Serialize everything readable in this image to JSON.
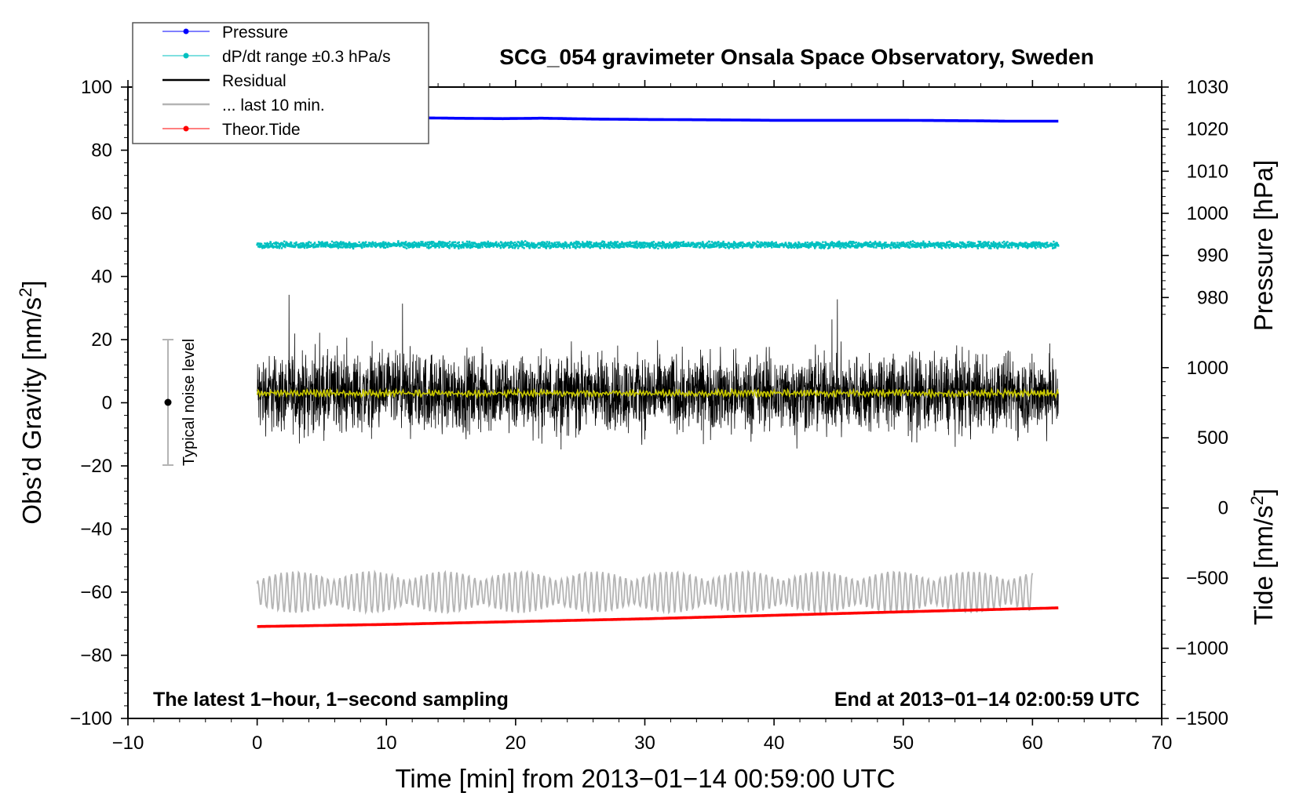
{
  "chart_data": {
    "type": "line",
    "title": "SCG_054 gravimeter Onsala Space Observatory, Sweden",
    "xlabel": "Time [min] from 2013−01−14 00:59:00 UTC",
    "ylabel_left": "Obs’d Gravity [nm/s",
    "ylabel_left_sup": "2",
    "ylabel_left_close": "]",
    "ylabel_right_pressure": "Pressure [hPa]",
    "ylabel_right_tide": "Tide [nm/s",
    "ylabel_right_tide_sup": "2",
    "ylabel_right_tide_close": "]",
    "xlim": [
      -10,
      70
    ],
    "ylim": [
      -100,
      100
    ],
    "pressure_axis": {
      "range": [
        880,
        1030
      ],
      "ticks": [
        980,
        990,
        1000,
        1010,
        1020,
        1030
      ]
    },
    "tide_axis": {
      "range": [
        -1500,
        3000
      ],
      "ticks": [
        -1500,
        -1000,
        -500,
        0,
        500,
        1000
      ]
    },
    "x_ticks": [
      -10,
      0,
      10,
      20,
      30,
      40,
      50,
      60,
      70
    ],
    "x_tick_labels": [
      "−10",
      "0",
      "10",
      "20",
      "30",
      "40",
      "50",
      "60",
      "70"
    ],
    "y_ticks": [
      -100,
      -80,
      -60,
      -40,
      -20,
      0,
      20,
      40,
      60,
      80,
      100
    ],
    "y_tick_labels": [
      "−100",
      "−80",
      "−60",
      "−40",
      "−20",
      "0",
      "20",
      "40",
      "60",
      "80",
      "100"
    ],
    "pressure_tick_labels": [
      "980",
      "990",
      "1000",
      "1010",
      "1020",
      "1030"
    ],
    "tide_tick_labels": [
      "−1500",
      "−1000",
      "−500",
      "0",
      "500",
      "1000"
    ],
    "series": [
      {
        "name": "Pressure",
        "axis": "pressure",
        "color": "#0000ff",
        "x": [
          0,
          5,
          10,
          15,
          19,
          22,
          26,
          30,
          36,
          40,
          45,
          50,
          55,
          58,
          62
        ],
        "values": [
          1022.9,
          1022.8,
          1022.8,
          1022.6,
          1022.5,
          1022.6,
          1022.4,
          1022.3,
          1022.2,
          1022.1,
          1022.1,
          1022.1,
          1022.0,
          1021.9,
          1021.9
        ]
      },
      {
        "name": "dP/dt range ±0.3 hPa/s",
        "axis": "gravity",
        "color": "#00c0c0",
        "center": 50,
        "spread": 1.2,
        "x_range": [
          0,
          62
        ]
      },
      {
        "name": "Residual",
        "axis": "gravity",
        "color": "#000000",
        "center": 3,
        "amplitude": 7,
        "x_range": [
          0,
          62
        ]
      },
      {
        "name": "... last 10 min.",
        "axis": "gravity",
        "color": "#b4b4b4",
        "center": -60,
        "amplitude": 6,
        "x_range": [
          0,
          60
        ]
      },
      {
        "name": "Theor.Tide",
        "axis": "tide",
        "color": "#ff0000",
        "x": [
          0,
          10,
          20,
          30,
          40,
          50,
          62
        ],
        "values": [
          -845,
          -830,
          -810,
          -790,
          -765,
          -740,
          -712
        ]
      },
      {
        "name": "Residual smoothed",
        "axis": "gravity",
        "color": "#c8c800",
        "center": 3,
        "amplitude": 1
      }
    ],
    "legend": [
      {
        "label": "Pressure",
        "color": "#0000ff",
        "marker": true
      },
      {
        "label": "dP/dt range ±0.3 hPa/s",
        "color": "#00c0c0",
        "marker": true
      },
      {
        "label": "Residual",
        "color": "#000000",
        "marker": false
      },
      {
        "label": "... last 10 min.",
        "color": "#b4b4b4",
        "marker": false
      },
      {
        "label": "Theor.Tide",
        "color": "#ff0000",
        "marker": true
      }
    ],
    "legend_position": "top-left",
    "noise_level": {
      "label": "Typical noise level",
      "x": -7,
      "center": 0,
      "low": -20,
      "high": 20
    },
    "annotations": {
      "bottom_left": "The latest 1−hour, 1−second sampling",
      "bottom_right": "End at 2013−01−14 02:00:59 UTC"
    }
  }
}
